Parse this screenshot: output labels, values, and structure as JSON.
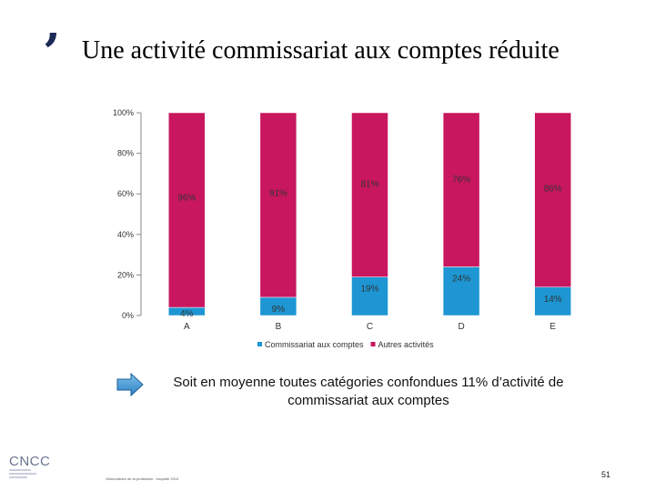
{
  "slide": {
    "title": "Une activité commissariat aux comptes réduite",
    "summary": "Soit en moyenne toutes catégories confondues 11% d’activité de commissariat aux comptes",
    "logo_text": "CNCC",
    "footer_note": "Observatoire de la profession - enquête 2014",
    "page_number": "51"
  },
  "colors": {
    "commissariat": "#1d96d3",
    "autres": "#c8175e",
    "sidebar_accent": "#1b2a55"
  },
  "chart_data": {
    "type": "bar",
    "stacked": true,
    "categories": [
      "A",
      "B",
      "C",
      "D",
      "E"
    ],
    "series": [
      {
        "name": "Commissariat aux comptes",
        "values": [
          4,
          9,
          19,
          24,
          14
        ],
        "labels": [
          "4%",
          "9%",
          "19%",
          "24%",
          "14%"
        ]
      },
      {
        "name": "Autres activités",
        "values": [
          96,
          91,
          81,
          76,
          86
        ],
        "labels": [
          "96%",
          "91%",
          "81%",
          "76%",
          "86%"
        ]
      }
    ],
    "yticks": [
      "0%",
      "20%",
      "40%",
      "60%",
      "80%",
      "100%"
    ],
    "ylim": [
      0,
      100
    ],
    "grid": false,
    "legend": "bottom"
  }
}
